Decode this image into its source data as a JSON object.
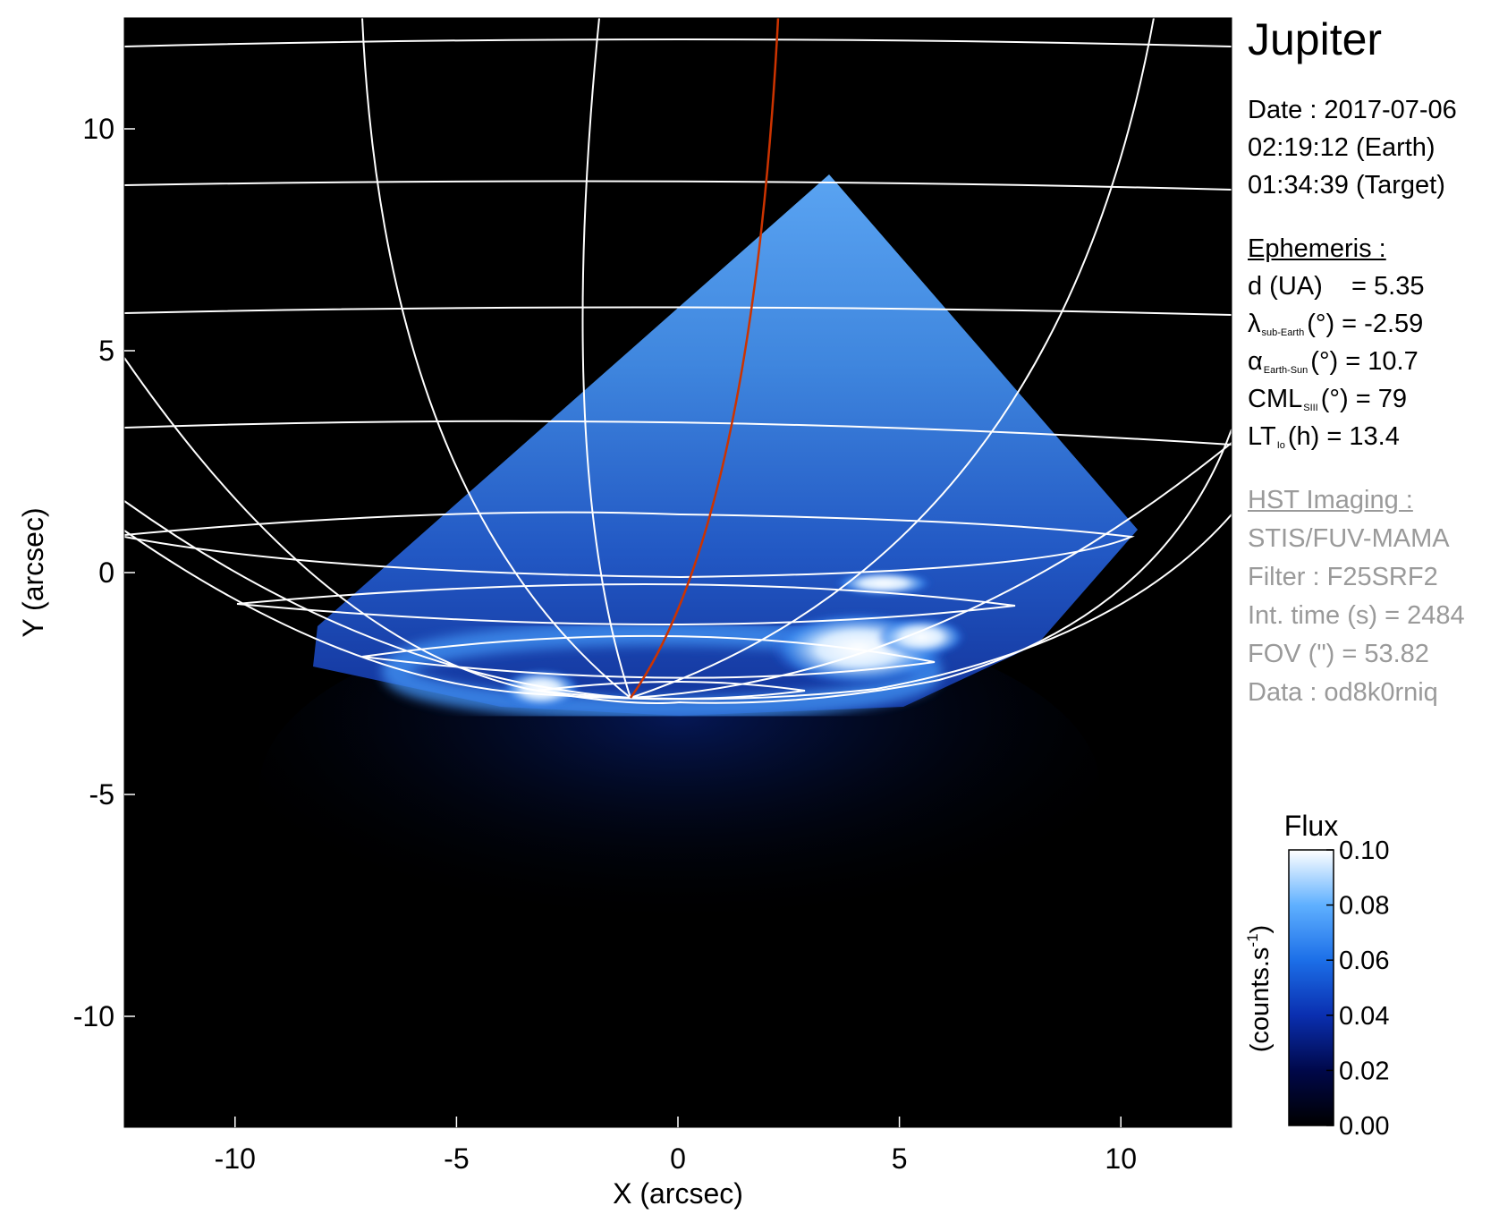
{
  "title": "Jupiter",
  "info": {
    "date_line": "Date : 2017-07-06",
    "earth_time": "02:19:12 (Earth)",
    "target_time": "01:34:39 (Target)",
    "ephemeris_header": "Ephemeris :",
    "d_label": "d (UA)",
    "d_value": "= 5.35",
    "lambda_symbol": "λ",
    "lambda_sub": "sub-Earth",
    "lambda_value": "(°) = -2.59",
    "alpha_symbol": "α",
    "alpha_sub": "Earth-Sun",
    "alpha_value": "(°) = 10.7",
    "cml_symbol": "CML",
    "cml_sub": "SIII",
    "cml_value": "(°) = 79",
    "lt_symbol": "LT",
    "lt_sub": "Io",
    "lt_value": "(h) = 13.4",
    "hst_header": "HST Imaging :",
    "instrument": "STIS/FUV-MAMA",
    "filter": "Filter : F25SRF2",
    "int_time": "Int. time (s) = 2484",
    "fov": "FOV (\") = 53.82",
    "data_id": "Data : od8k0rniq"
  },
  "chart_data": {
    "type": "heatmap",
    "xlabel": "X (arcsec)",
    "ylabel": "Y (arcsec)",
    "xlim": [
      -12.5,
      12.5
    ],
    "ylim": [
      -12.5,
      12.5
    ],
    "xticks": [
      -10,
      -5,
      0,
      5,
      10
    ],
    "yticks": [
      -10,
      -5,
      0,
      5,
      10
    ],
    "colorbar": {
      "title": "Flux",
      "label": "(counts.s-1)",
      "label_main": "(counts.s",
      "label_sup": "-1",
      "label_close": ")",
      "range": [
        0.0,
        0.1
      ],
      "ticks": [
        "0.00",
        "0.02",
        "0.04",
        "0.06",
        "0.08",
        "0.10"
      ],
      "colors": [
        "#000000",
        "#00084a",
        "#0a2fb0",
        "#1c6fe8",
        "#5fb0ff",
        "#ffffff"
      ]
    },
    "grid_color": "#ffffff",
    "terminator_color": "#cc3300",
    "background": "#000000"
  }
}
